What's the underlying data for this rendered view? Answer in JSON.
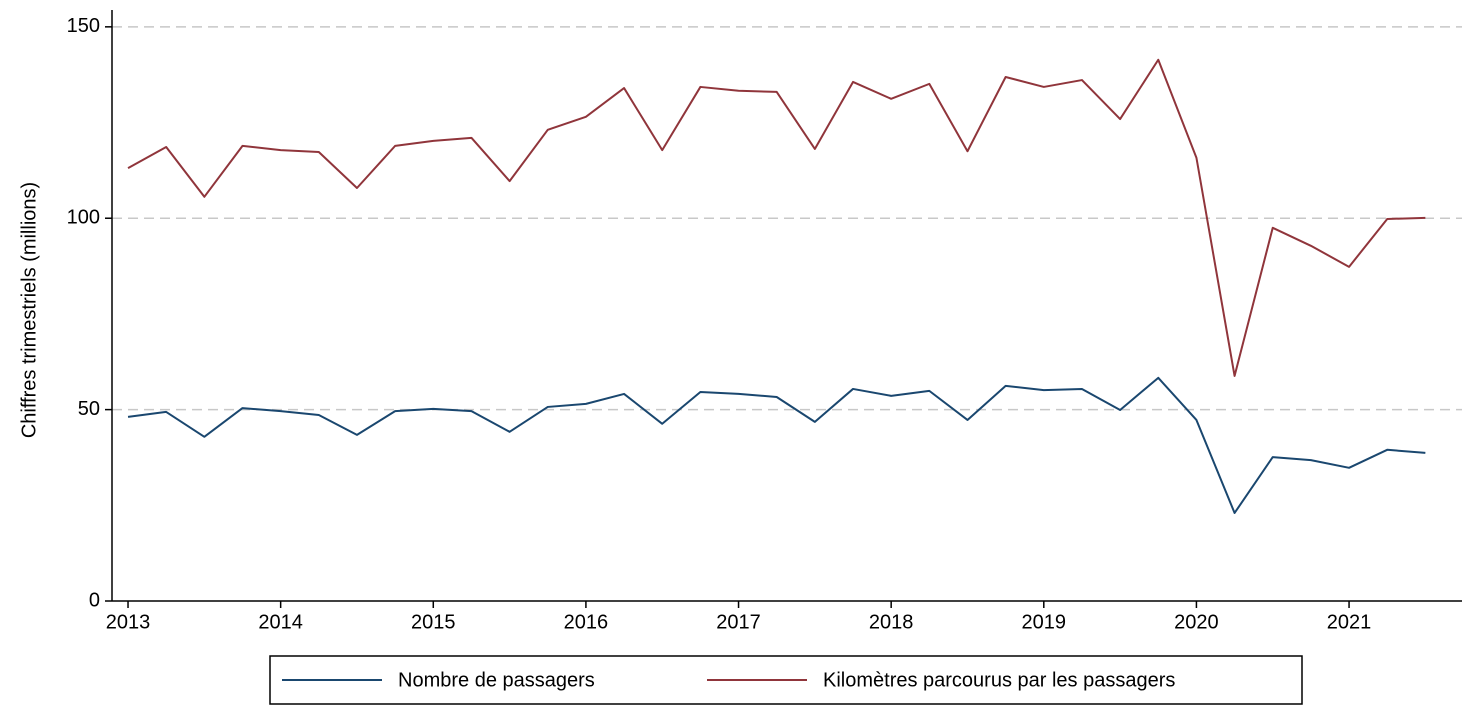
{
  "chart_data": {
    "type": "line",
    "y_label": "Chiffres trimestriels (millions)",
    "x": [
      2013,
      2013.25,
      2013.5,
      2013.75,
      2014,
      2014.25,
      2014.5,
      2014.75,
      2015,
      2015.25,
      2015.5,
      2015.75,
      2016,
      2016.25,
      2016.5,
      2016.75,
      2017,
      2017.25,
      2017.5,
      2017.75,
      2018,
      2018.25,
      2018.5,
      2018.75,
      2019,
      2019.25,
      2019.5,
      2019.75,
      2020,
      2020.25,
      2020.5,
      2020.75,
      2021,
      2021.25,
      2021.5
    ],
    "series": [
      {
        "name": "Nombre de passagers",
        "color": "#1a476f",
        "values": [
          48.1,
          49.4,
          42.9,
          50.4,
          49.6,
          48.6,
          43.4,
          49.6,
          50.2,
          49.6,
          44.2,
          50.7,
          51.5,
          54.1,
          46.3,
          54.6,
          54.1,
          53.3,
          46.8,
          55.4,
          53.6,
          54.9,
          47.3,
          56.2,
          55.1,
          55.4,
          49.9,
          58.3,
          47.3,
          23.0,
          37.6,
          36.8,
          34.8,
          39.5,
          38.7
        ]
      },
      {
        "name": "Kilomètres parcourus par les passagers",
        "color": "#90353b",
        "values": [
          113.1,
          118.6,
          105.6,
          118.9,
          117.8,
          117.3,
          107.9,
          118.9,
          120.2,
          121.0,
          109.7,
          123.1,
          126.5,
          134.0,
          117.8,
          134.3,
          133.3,
          133.0,
          118.1,
          135.6,
          131.2,
          135.1,
          117.5,
          136.9,
          134.3,
          136.1,
          125.9,
          141.4,
          115.8,
          58.8,
          97.5,
          92.8,
          87.3,
          99.8,
          100.1
        ]
      }
    ],
    "xlim": [
      2012.895,
      2021.74
    ],
    "xticks": [
      2013,
      2014,
      2015,
      2016,
      2017,
      2018,
      2019,
      2020,
      2021
    ],
    "ylim": [
      0,
      154.4
    ],
    "yticks": [
      0,
      50,
      100,
      150
    ],
    "grid": true,
    "legend": "bottom"
  }
}
